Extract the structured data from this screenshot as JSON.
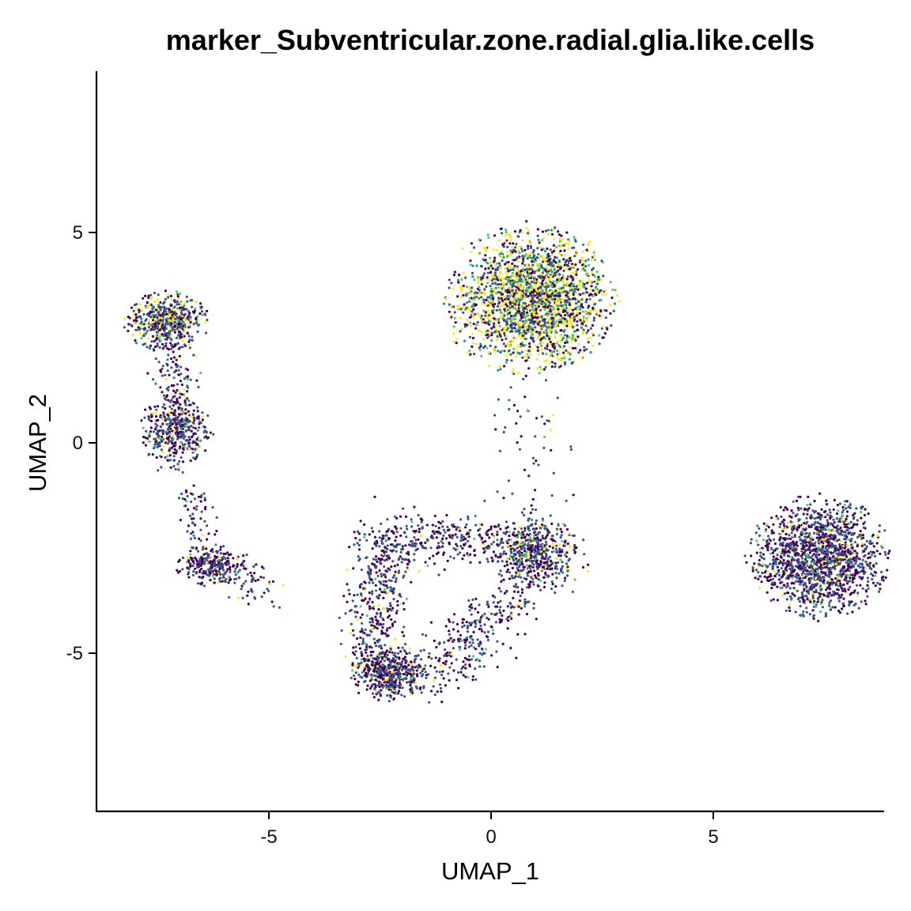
{
  "chart_data": {
    "type": "scatter",
    "title": "marker_Subventricular.zone.radial.glia.like.cells",
    "xlabel": "UMAP_1",
    "ylabel": "UMAP_2",
    "xlim": [
      -8.8,
      8.8
    ],
    "ylim": [
      -8.8,
      8.8
    ],
    "xticks": [
      -5,
      0,
      5
    ],
    "xtick_labels": [
      "-5",
      "0",
      "5"
    ],
    "yticks": [
      -5,
      0,
      5
    ],
    "ytick_labels": [
      "-5",
      "0",
      "5"
    ],
    "grid": false,
    "legend": "none",
    "colormap": [
      "#440154",
      "#3b528b",
      "#21908c",
      "#5dc963",
      "#fde725"
    ],
    "clusters": [
      {
        "cx": 0.9,
        "cy": 3.4,
        "rx": 1.7,
        "ry": 1.6,
        "n": 2200,
        "expr_mean": 0.62
      },
      {
        "cx": -7.3,
        "cy": 2.9,
        "rx": 0.85,
        "ry": 0.65,
        "n": 520,
        "expr_mean": 0.35
      },
      {
        "cx": -7.1,
        "cy": 0.3,
        "rx": 0.7,
        "ry": 0.9,
        "n": 420,
        "expr_mean": 0.18
      },
      {
        "cx": -6.3,
        "cy": -2.9,
        "rx": 0.7,
        "ry": 0.45,
        "n": 260,
        "expr_mean": 0.12
      },
      {
        "cx": 0.9,
        "cy": -2.5,
        "rx": 0.9,
        "ry": 0.75,
        "n": 500,
        "expr_mean": 0.22
      },
      {
        "cx": 7.4,
        "cy": -2.7,
        "rx": 1.4,
        "ry": 1.3,
        "n": 1500,
        "expr_mean": 0.15
      },
      {
        "cx": -2.3,
        "cy": -5.5,
        "rx": 0.8,
        "ry": 0.55,
        "n": 450,
        "expr_mean": 0.15
      }
    ],
    "arcs": [
      {
        "x0": -2.5,
        "y0": -2.6,
        "x1": -2.6,
        "y1": -5.3,
        "n": 380,
        "spread": 0.35
      },
      {
        "x0": -2.6,
        "y0": -2.3,
        "x1": 0.0,
        "y1": -2.3,
        "n": 300,
        "spread": 0.3
      },
      {
        "x0": -1.4,
        "y0": -5.5,
        "x1": 0.0,
        "y1": -4.2,
        "n": 220,
        "spread": 0.35
      },
      {
        "x0": 0.0,
        "y0": -4.2,
        "x1": 1.7,
        "y1": -2.7,
        "n": 160,
        "spread": 0.3
      },
      {
        "x0": -7.2,
        "y0": 2.2,
        "x1": -7.0,
        "y1": 1.0,
        "n": 90,
        "spread": 0.25
      },
      {
        "x0": -6.9,
        "y0": -0.9,
        "x1": -6.4,
        "y1": -2.4,
        "n": 60,
        "spread": 0.25
      },
      {
        "x0": -6.0,
        "y0": -3.0,
        "x1": -5.0,
        "y1": -3.6,
        "n": 70,
        "spread": 0.25
      },
      {
        "x0": 0.9,
        "y0": 1.5,
        "x1": 0.9,
        "y1": -1.5,
        "n": 60,
        "spread": 0.55
      }
    ]
  }
}
